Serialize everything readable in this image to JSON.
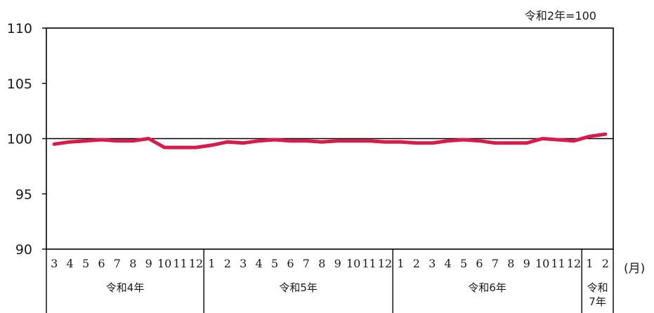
{
  "chart_data": {
    "type": "line",
    "note": "令和2年=100",
    "x_unit": "(月)",
    "ylim": [
      90,
      110
    ],
    "yticks": [
      90,
      95,
      100,
      105,
      110
    ],
    "reference_line": 100,
    "grid": false,
    "categories": [
      "3",
      "4",
      "5",
      "6",
      "7",
      "8",
      "9",
      "10",
      "11",
      "12",
      "1",
      "2",
      "3",
      "4",
      "5",
      "6",
      "7",
      "8",
      "9",
      "10",
      "11",
      "12",
      "1",
      "2",
      "3",
      "4",
      "5",
      "6",
      "7",
      "8",
      "9",
      "10",
      "11",
      "12",
      "1",
      "2"
    ],
    "eras": [
      {
        "label": "令和4年",
        "lines": [
          "令和4年"
        ],
        "count": 10
      },
      {
        "label": "令和5年",
        "lines": [
          "令和5年"
        ],
        "count": 12
      },
      {
        "label": "令和6年",
        "lines": [
          "令和6年"
        ],
        "count": 12
      },
      {
        "label": "令和7年",
        "lines": [
          "令和",
          "7年"
        ],
        "count": 2
      }
    ],
    "series": [
      {
        "color": "#d81b4a",
        "values": [
          99.5,
          99.7,
          99.8,
          99.9,
          99.8,
          99.8,
          100.0,
          99.2,
          99.2,
          99.2,
          99.4,
          99.7,
          99.6,
          99.8,
          99.9,
          99.8,
          99.8,
          99.7,
          99.8,
          99.8,
          99.8,
          99.7,
          99.7,
          99.6,
          99.6,
          99.8,
          99.9,
          99.8,
          99.6,
          99.6,
          99.6,
          100.0,
          99.9,
          99.8,
          100.2,
          100.4
        ]
      }
    ]
  }
}
